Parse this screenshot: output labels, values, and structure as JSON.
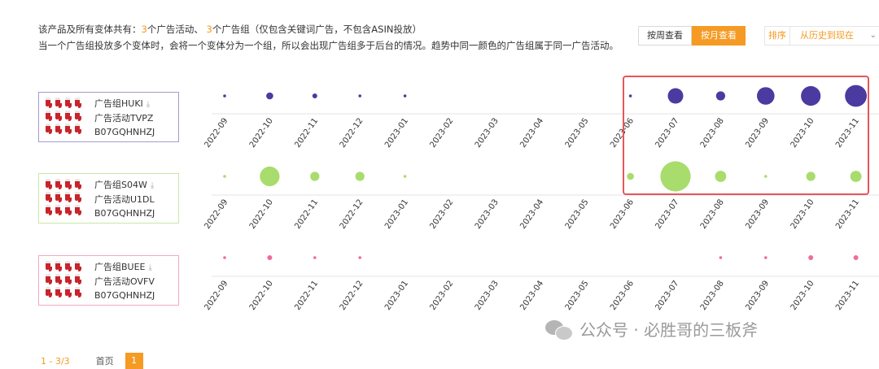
{
  "summary": {
    "line1_prefix": "该产品及所有变体共有：",
    "campaign_count": "3",
    "campaign_text": "个广告活动、",
    "group_count": "3",
    "group_text": "个广告组（仅包含关键词广告，不包含ASIN投放）",
    "line2": "当一个广告组投放多个变体时，会将一个变体分为一个组，所以会出现广告组多于后台的情况。趋势中同一颜色的广告组属于同一广告活动。"
  },
  "view_toggle": {
    "week": "按周查看",
    "month": "按月查看",
    "active": "month"
  },
  "sort": {
    "label": "排序",
    "value": "从历史到现在"
  },
  "months": [
    "2022-09",
    "2022-10",
    "2022-11",
    "2022-12",
    "2023-01",
    "2023-02",
    "2023-03",
    "2023-04",
    "2023-05",
    "2023-06",
    "2023-07",
    "2023-08",
    "2023-09",
    "2023-10",
    "2023-11"
  ],
  "groups": [
    {
      "group": "广告组HUKI",
      "campaign": "广告活动TVPZ",
      "asin": "B07GQHNHZJ",
      "color": "#4b3aa0",
      "border": "#a59bd1",
      "bubbles": [
        1,
        3,
        2,
        1,
        1,
        0,
        0,
        0,
        0,
        1,
        7,
        4,
        8,
        9,
        10
      ]
    },
    {
      "group": "广告组S04W",
      "campaign": "广告活动U1DL",
      "asin": "B07GQHNHZJ",
      "color": "#a8dc6c",
      "border": "#c8e8a6",
      "bubbles": [
        1,
        9,
        4,
        4,
        1,
        0,
        0,
        0,
        0,
        3,
        14,
        5,
        1,
        4,
        5
      ]
    },
    {
      "group": "广告组BUEE",
      "campaign": "广告活动OVFV",
      "asin": "B07GQHNHZJ",
      "color": "#f06aa0",
      "border": "#f4a9c4",
      "bubbles": [
        1,
        2,
        1,
        1,
        0,
        0,
        0,
        0,
        0,
        0,
        0,
        1,
        1,
        2,
        2
      ]
    }
  ],
  "icons": {
    "download": "download-icon",
    "product": "stocking-thumbnail-icon",
    "watermark": "wechat-icon"
  },
  "watermark": "公众号 · 必胜哥的三板斧",
  "pager": {
    "count": "1 - 3/3",
    "first": "首页",
    "current": "1"
  }
}
